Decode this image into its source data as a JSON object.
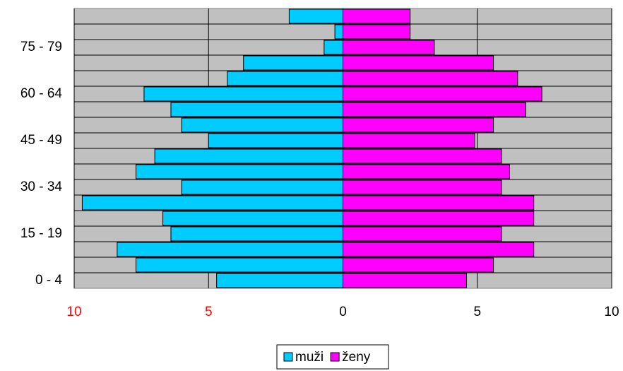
{
  "chart_data": {
    "type": "pyramid",
    "categories": [
      "0 - 4",
      null,
      null,
      "15 - 19",
      null,
      null,
      "30 - 34",
      null,
      null,
      "45 - 49",
      null,
      null,
      "60 - 64",
      null,
      null,
      "75 - 79",
      null,
      null
    ],
    "series": [
      {
        "name": "muži",
        "color": "#00ccff",
        "values": [
          -4.7,
          -7.7,
          -8.4,
          -6.4,
          -6.7,
          -9.7,
          -6.0,
          -7.7,
          -7.0,
          -5.0,
          -6.0,
          -6.4,
          -7.4,
          -4.3,
          -3.7,
          -0.7,
          -0.3,
          -2.0
        ]
      },
      {
        "name": "ženy",
        "color": "#ff00ff",
        "values": [
          4.6,
          5.6,
          7.1,
          5.9,
          7.1,
          7.1,
          5.9,
          6.2,
          5.9,
          4.9,
          5.6,
          6.8,
          7.4,
          6.5,
          5.6,
          3.4,
          2.5,
          2.5
        ]
      }
    ],
    "xlim": [
      -10,
      10
    ],
    "xticks": [
      {
        "value": -10,
        "label": "10"
      },
      {
        "value": -5,
        "label": "5"
      },
      0,
      5,
      10
    ],
    "xtick_colors": [
      "#ff0000",
      "#ff0000",
      "#000000",
      "#000000",
      "#000000"
    ],
    "grid": true,
    "background": "#c0c0c0",
    "legend": "bottom"
  }
}
